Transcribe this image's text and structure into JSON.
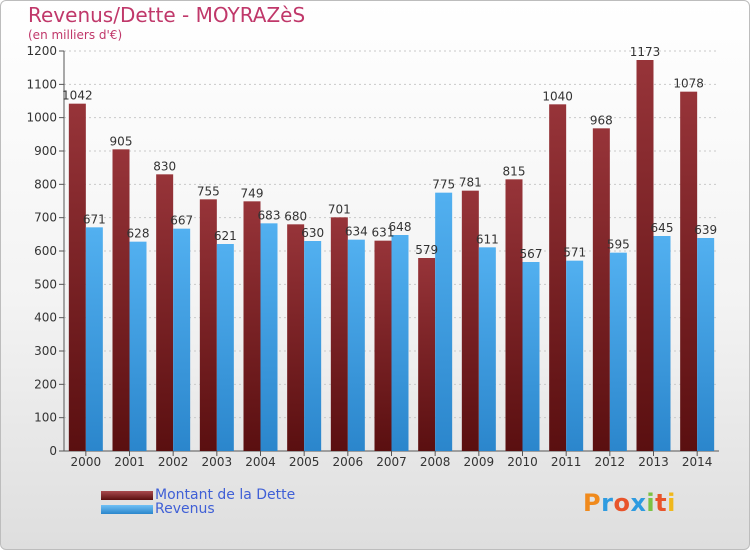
{
  "chart_data": {
    "type": "bar",
    "title": "Revenus/Dette - MOYRAZèS",
    "subtitle": "(en milliers d'€)",
    "categories": [
      "2000",
      "2001",
      "2002",
      "2003",
      "2004",
      "2005",
      "2006",
      "2007",
      "2008",
      "2009",
      "2010",
      "2011",
      "2012",
      "2013",
      "2014"
    ],
    "series": [
      {
        "name": "Montant de la Dette",
        "color": "#8b2a2e",
        "values": [
          1042,
          905,
          830,
          755,
          749,
          680,
          701,
          631,
          579,
          781,
          815,
          1040,
          968,
          1173,
          1078
        ]
      },
      {
        "name": "Revenus",
        "color": "#3fa0e6",
        "values": [
          671,
          628,
          667,
          621,
          683,
          630,
          634,
          648,
          775,
          611,
          567,
          571,
          595,
          645,
          639
        ]
      }
    ],
    "ylim": [
      0,
      1200
    ],
    "yticks": [
      0,
      100,
      200,
      300,
      400,
      500,
      600,
      700,
      800,
      900,
      1000,
      1100,
      1200
    ],
    "grid": true,
    "legend_position": "bottom-left"
  },
  "brand": {
    "name": "Proxiti",
    "colors": [
      "#f08a1c",
      "#2e9be0",
      "#e8542b",
      "#2e9be0",
      "#7cc243",
      "#e8542b",
      "#f0b81c"
    ]
  }
}
